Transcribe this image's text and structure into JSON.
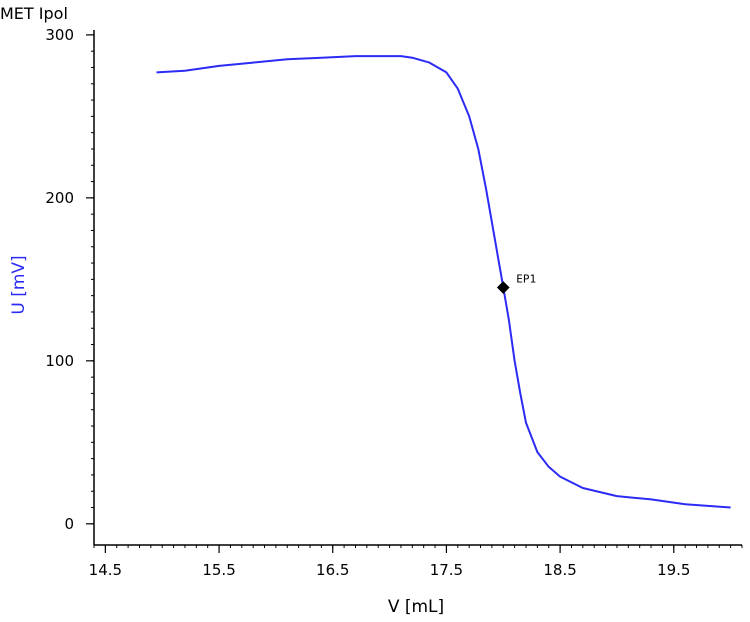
{
  "method_title": "MET Ipol",
  "colors": {
    "curve": "#2b2bf5",
    "ylabel": "#2b2bf5",
    "axis": "#000000",
    "marker": "#000000"
  },
  "chart_data": {
    "type": "line",
    "title": "MET Ipol",
    "xlabel": "V [mL]",
    "ylabel": "U [mV]",
    "xlim": [
      14.4,
      20.1
    ],
    "ylim": [
      -13,
      303
    ],
    "xticks": [
      14.5,
      15.5,
      16.5,
      17.5,
      18.5,
      19.5
    ],
    "xtick_labels": [
      "14.5",
      "15.5",
      "16.5",
      "17.5",
      "18.5",
      "19.5"
    ],
    "yticks": [
      0,
      100,
      200,
      300
    ],
    "ytick_labels": [
      "0",
      "100",
      "200",
      "300"
    ],
    "x_minor_step": 0.1,
    "y_minor_step": 10,
    "grid": false,
    "legend": "none",
    "series": [
      {
        "values": [
          [
            14.95,
            277
          ],
          [
            15.2,
            278
          ],
          [
            15.5,
            281
          ],
          [
            15.8,
            283
          ],
          [
            16.1,
            285
          ],
          [
            16.4,
            286
          ],
          [
            16.7,
            287
          ],
          [
            17.0,
            287
          ],
          [
            17.1,
            287
          ],
          [
            17.2,
            286
          ],
          [
            17.35,
            283
          ],
          [
            17.5,
            277
          ],
          [
            17.6,
            267
          ],
          [
            17.7,
            250
          ],
          [
            17.78,
            230
          ],
          [
            17.85,
            205
          ],
          [
            17.9,
            185
          ],
          [
            17.95,
            165
          ],
          [
            18.0,
            145
          ],
          [
            18.05,
            125
          ],
          [
            18.1,
            100
          ],
          [
            18.15,
            80
          ],
          [
            18.2,
            62
          ],
          [
            18.3,
            44
          ],
          [
            18.4,
            35
          ],
          [
            18.5,
            29
          ],
          [
            18.7,
            22
          ],
          [
            19.0,
            17
          ],
          [
            19.3,
            15
          ],
          [
            19.6,
            12
          ],
          [
            19.8,
            11
          ],
          [
            20.0,
            10
          ]
        ]
      }
    ],
    "annotations": [
      {
        "label": "EP1",
        "x": 18.0,
        "y": 145
      }
    ]
  }
}
